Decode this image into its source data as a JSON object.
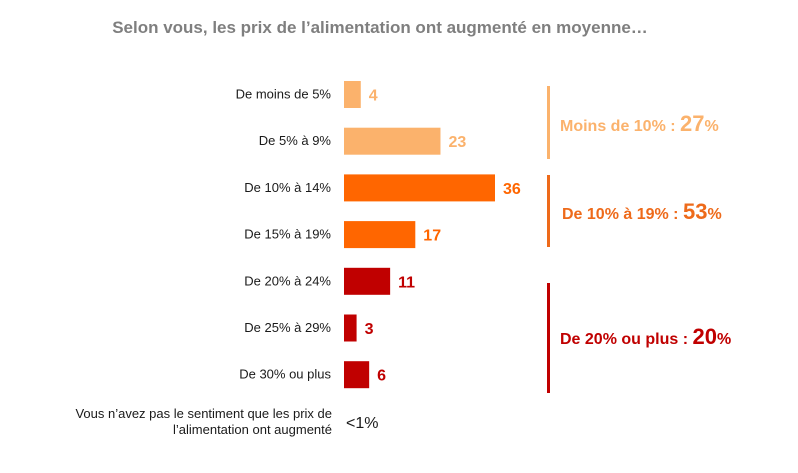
{
  "title": "Selon vous, les prix de l’alimentation ont augmenté en moyenne…",
  "chart_data": {
    "type": "bar",
    "orientation": "horizontal",
    "title": "Selon vous, les prix de l’alimentation ont augmenté en moyenne…",
    "xlim": [
      0,
      36
    ],
    "grid": false,
    "categories": [
      "De moins de 5%",
      "De 5% à 9%",
      "De 10% à 14%",
      "De 15% à 19%",
      "De 20% à 24%",
      "De 25% à 29%",
      "De 30% ou plus"
    ],
    "values": [
      4,
      23,
      36,
      17,
      11,
      3,
      6
    ],
    "data_labels": [
      "4",
      "23",
      "36",
      "17",
      "11",
      "3",
      "6"
    ],
    "colors": [
      "#fbb26c",
      "#fbb26c",
      "#ff6600",
      "#ff6600",
      "#c00000",
      "#c00000",
      "#c00000"
    ],
    "extra_category": {
      "label_line1": "Vous n’avez pas le sentiment que les prix de",
      "label_line2": "l’alimentation ont augmenté",
      "value_label": "<1%"
    },
    "groups": [
      {
        "label": "Moins de 10% : ",
        "value": "27",
        "unit": "%",
        "color": "#fbb26c",
        "value_total": 27
      },
      {
        "label": "De 10% à 19% : ",
        "value": "53",
        "unit": "%",
        "color": "#ee6a1a",
        "value_total": 53
      },
      {
        "label": "De 20% ou plus : ",
        "value": "20",
        "unit": "%",
        "color": "#c00000",
        "value_total": 20
      }
    ]
  }
}
